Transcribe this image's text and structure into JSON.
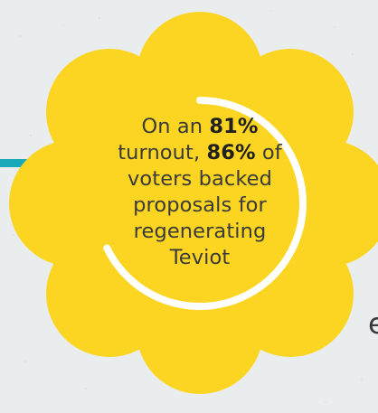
{
  "infographic": {
    "statement": {
      "prefix": "On an",
      "turnout_value": "81%",
      "middle": "turnout,",
      "support_value": "86%",
      "of_word": "of",
      "line3": "voters backed",
      "line4": "proposals for",
      "line5": "regenerating",
      "line6": "Teviot"
    },
    "cropped_letter": "e"
  },
  "colors": {
    "background": "#e9eded",
    "flower": "#fbd522",
    "ring": "#ffffff",
    "accent_bar": "#1aa9b8",
    "text": "#3a3a3a"
  },
  "icons": {
    "flower": "flower-shape-icon",
    "ring": "progress-ring-icon"
  }
}
